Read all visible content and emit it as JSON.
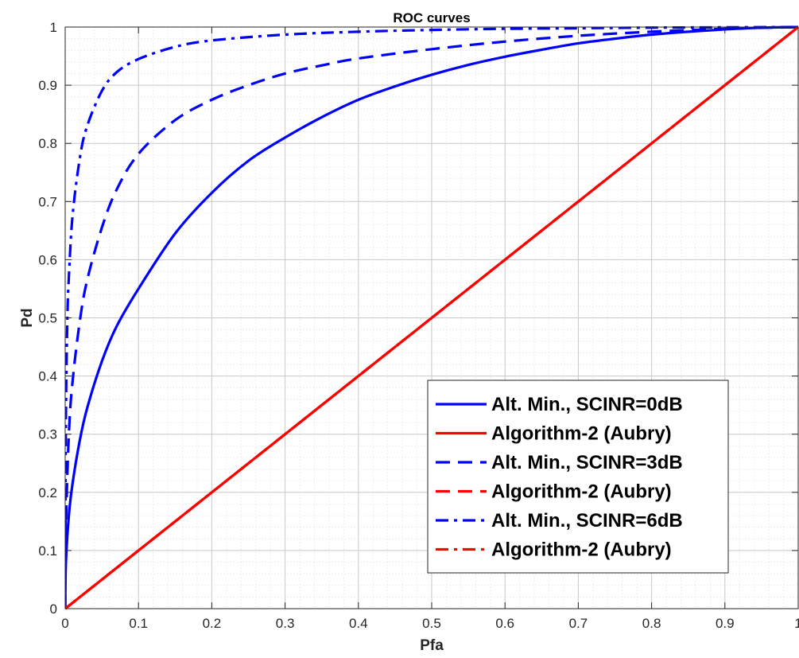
{
  "chart_data": {
    "type": "line",
    "title": "ROC curves",
    "xlabel": "Pfa",
    "ylabel": "Pd",
    "xlim": [
      0,
      1
    ],
    "ylim": [
      0,
      1
    ],
    "xticks": [
      0,
      0.1,
      0.2,
      0.3,
      0.4,
      0.5,
      0.6,
      0.7,
      0.8,
      0.9,
      1
    ],
    "yticks": [
      0,
      0.1,
      0.2,
      0.3,
      0.4,
      0.5,
      0.6,
      0.7,
      0.8,
      0.9,
      1
    ],
    "xtick_labels": [
      "0",
      "0.1",
      "0.2",
      "0.3",
      "0.4",
      "0.5",
      "0.6",
      "0.7",
      "0.8",
      "0.9",
      "1"
    ],
    "ytick_labels": [
      "0",
      "0.1",
      "0.2",
      "0.3",
      "0.4",
      "0.5",
      "0.6",
      "0.7",
      "0.8",
      "0.9",
      "1"
    ],
    "grid": true,
    "minor_grid": true,
    "legend_position": "bottom-right",
    "series": [
      {
        "name": "Alt. Min., SCINR=0dB",
        "color": "#0000ff",
        "line_style": "solid",
        "x": [
          0,
          0.001,
          0.005,
          0.01,
          0.02,
          0.03,
          0.05,
          0.07,
          0.1,
          0.15,
          0.2,
          0.25,
          0.3,
          0.35,
          0.4,
          0.45,
          0.5,
          0.55,
          0.6,
          0.65,
          0.7,
          0.75,
          0.8,
          0.85,
          0.9,
          0.95,
          1
        ],
        "y": [
          0,
          0.08,
          0.16,
          0.215,
          0.29,
          0.345,
          0.425,
          0.485,
          0.55,
          0.645,
          0.715,
          0.77,
          0.81,
          0.845,
          0.875,
          0.898,
          0.918,
          0.935,
          0.949,
          0.961,
          0.972,
          0.98,
          0.987,
          0.992,
          0.996,
          0.999,
          1
        ]
      },
      {
        "name": "Algorithm-2 (Aubry)",
        "color": "#ff0000",
        "line_style": "solid",
        "x": [
          0,
          1
        ],
        "y": [
          0,
          1
        ]
      },
      {
        "name": "Alt. Min., SCINR=3dB",
        "color": "#0000ff",
        "line_style": "dashed",
        "x": [
          0,
          0.001,
          0.005,
          0.01,
          0.02,
          0.03,
          0.05,
          0.07,
          0.1,
          0.15,
          0.2,
          0.25,
          0.3,
          0.35,
          0.4,
          0.5,
          0.6,
          0.7,
          0.8,
          0.9,
          1
        ],
        "y": [
          0,
          0.14,
          0.3,
          0.39,
          0.495,
          0.565,
          0.655,
          0.72,
          0.782,
          0.84,
          0.875,
          0.9,
          0.92,
          0.934,
          0.946,
          0.962,
          0.975,
          0.985,
          0.992,
          0.997,
          1
        ]
      },
      {
        "name": "Algorithm-2 (Aubry)",
        "color": "#ff0000",
        "line_style": "dashed",
        "x": [
          0,
          1
        ],
        "y": [
          0,
          1
        ]
      },
      {
        "name": "Alt. Min., SCINR=6dB",
        "color": "#0000ff",
        "line_style": "dashdot",
        "x": [
          0,
          0.001,
          0.003,
          0.005,
          0.01,
          0.02,
          0.03,
          0.05,
          0.07,
          0.1,
          0.15,
          0.2,
          0.3,
          0.4,
          0.5,
          0.6,
          0.7,
          0.8,
          0.9,
          1
        ],
        "y": [
          0,
          0.33,
          0.5,
          0.57,
          0.675,
          0.775,
          0.83,
          0.89,
          0.922,
          0.945,
          0.966,
          0.977,
          0.987,
          0.992,
          0.995,
          0.997,
          0.998,
          0.999,
          0.9995,
          1
        ]
      },
      {
        "name": "Algorithm-2 (Aubry)",
        "color": "#ff0000",
        "line_style": "dashdot",
        "x": [
          0,
          1
        ],
        "y": [
          0,
          1
        ]
      }
    ]
  }
}
